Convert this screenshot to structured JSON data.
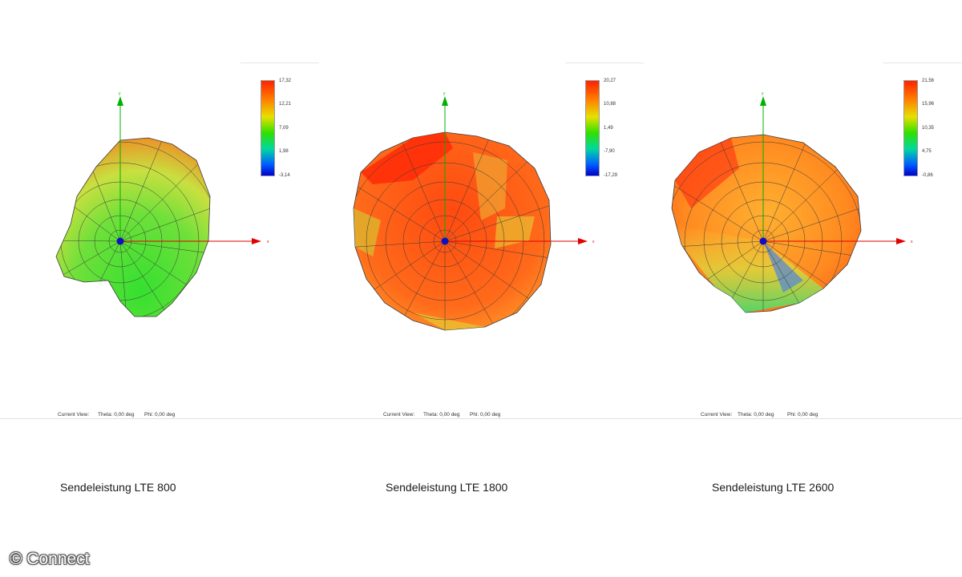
{
  "panels": [
    {
      "caption": "Sendeleistung LTE 800",
      "colorbar": {
        "max": "17,32",
        "t2": "12,21",
        "t3": "7,09",
        "t4": "1,98",
        "min": "-3,14"
      },
      "status": {
        "view": "Current View:",
        "theta": "Theta: 0,00 deg",
        "phi": "Phi: 0,00 deg"
      },
      "axes": {
        "x": "x",
        "y": "y"
      }
    },
    {
      "caption": "Sendeleistung LTE 1800",
      "colorbar": {
        "max": "20,27",
        "t2": "10,88",
        "t3": "1,49",
        "t4": "-7,90",
        "min": "-17,29"
      },
      "status": {
        "view": "Current View:",
        "theta": "Theta: 0,00 deg",
        "phi": "Phi: 0,00 deg"
      },
      "axes": {
        "x": "x",
        "y": "y"
      }
    },
    {
      "caption": "Sendeleistung LTE 2600",
      "colorbar": {
        "max": "21,56",
        "t2": "15,96",
        "t3": "10,35",
        "t4": "4,75",
        "min": "-0,86"
      },
      "status": {
        "view": "Current View:",
        "theta": "Theta: 0,00 deg",
        "phi": "Phi: 0,00 deg"
      },
      "axes": {
        "x": "x",
        "y": "y"
      }
    }
  ],
  "watermark": "© Connect",
  "colors": {
    "axis_x": "#e00000",
    "axis_y": "#00b000",
    "origin": "#1010c0",
    "grid": "#3a3a3a"
  }
}
